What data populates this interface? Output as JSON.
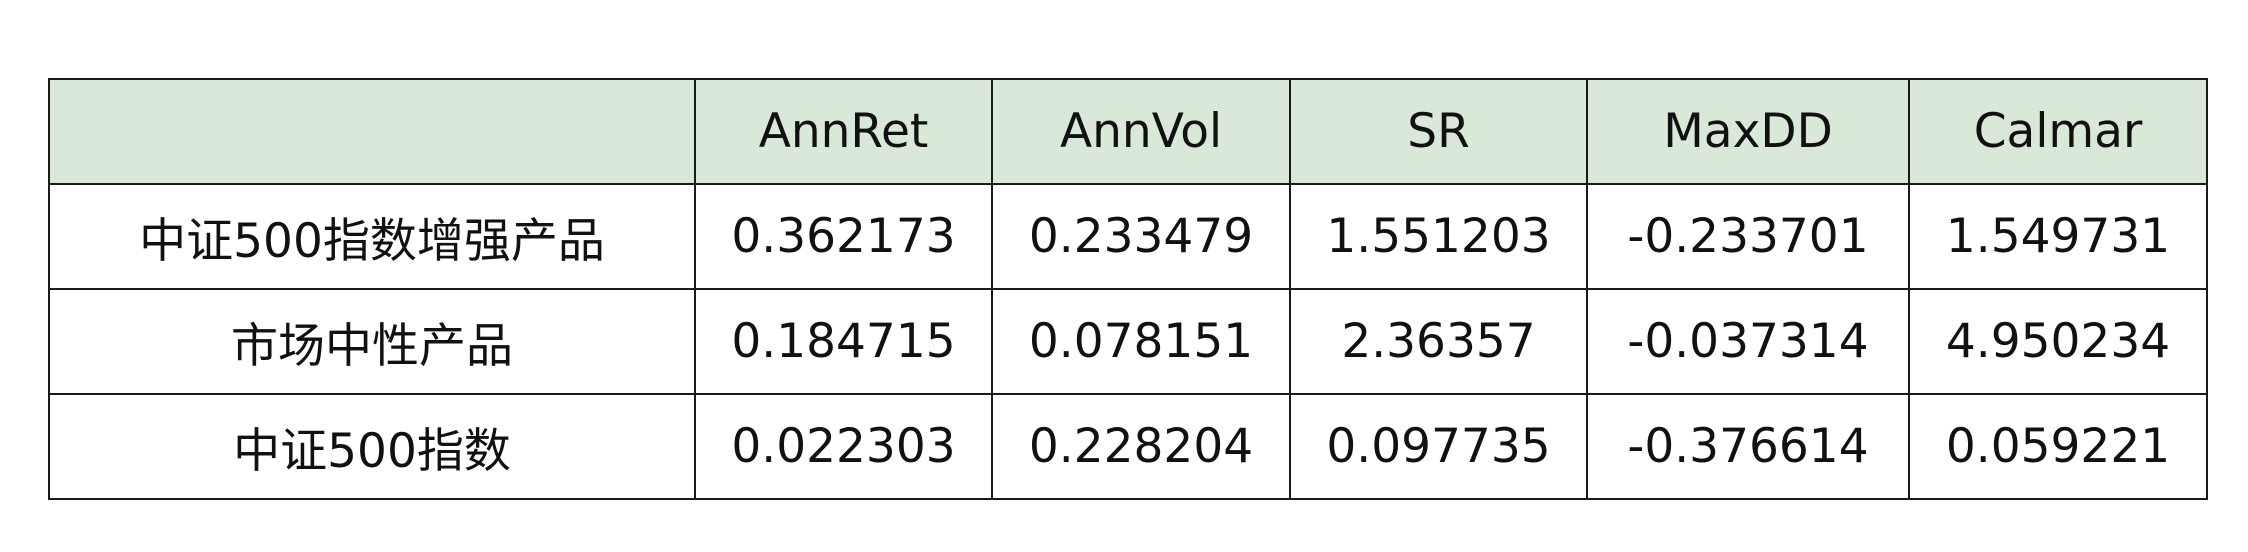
{
  "chart_data": {
    "type": "table",
    "columns": [
      "",
      "AnnRet",
      "AnnVol",
      "SR",
      "MaxDD",
      "Calmar"
    ],
    "rows": [
      [
        "中证500指数增强产品",
        "0.362173",
        "0.233479",
        "1.551203",
        "-0.233701",
        "1.549731"
      ],
      [
        "市场中性产品",
        "0.184715",
        "0.078151",
        "2.36357",
        "-0.037314",
        "4.950234"
      ],
      [
        "中证500指数",
        "0.022303",
        "0.228204",
        "0.097735",
        "-0.376614",
        "0.059221"
      ]
    ]
  },
  "colors": {
    "header_background": "#d9e9d7",
    "border": "#1a1a1a",
    "text": "#111111"
  }
}
